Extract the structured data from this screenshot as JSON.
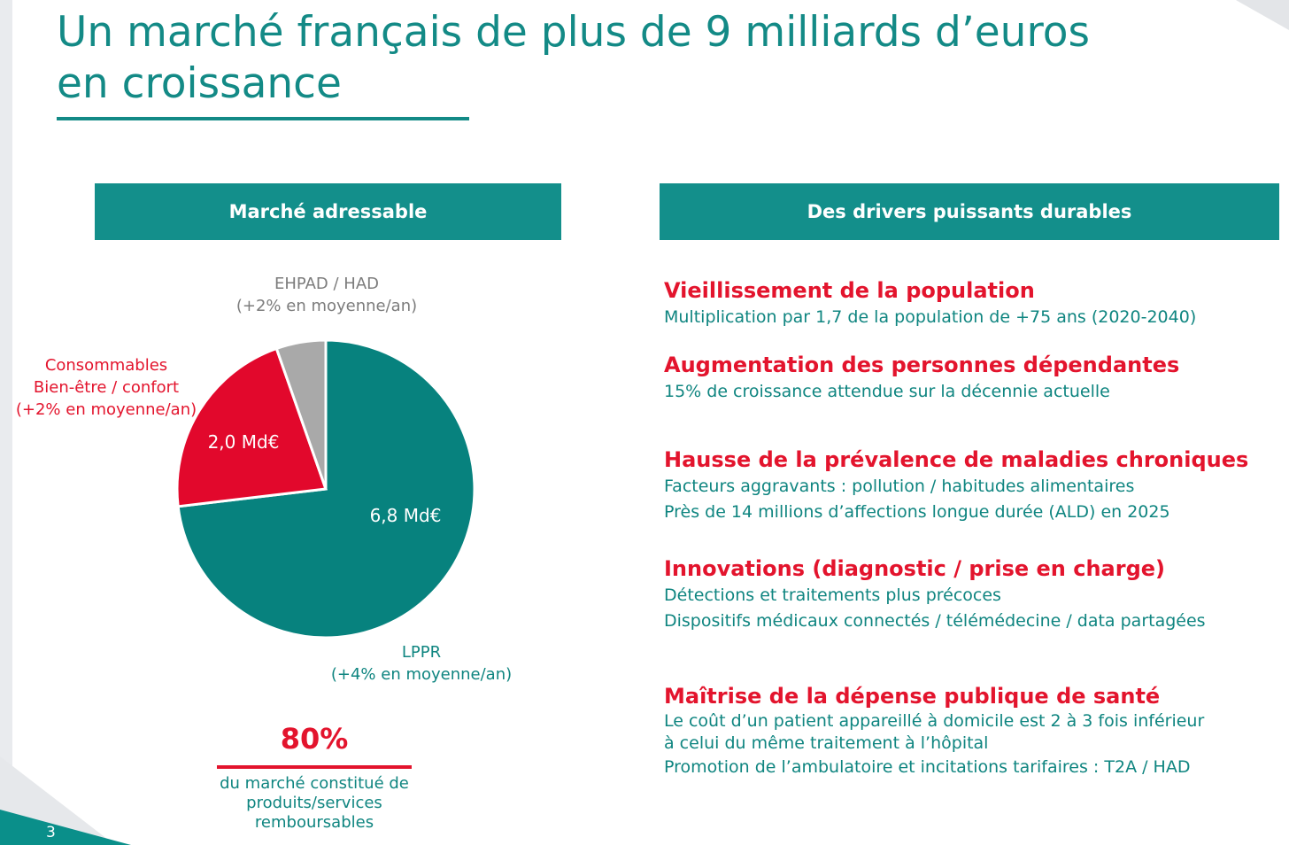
{
  "slide": {
    "title_line1": "Un marché français de plus de 9 milliards d’euros",
    "title_line2": "en croissance",
    "page_number": "3"
  },
  "left_panel": {
    "header": "Marché adressable",
    "labels": {
      "ehpad": [
        "EHPAD / HAD",
        "(+2% en moyenne/an)"
      ],
      "consommables": [
        "Consommables",
        "Bien-être / confort",
        "(+2% en moyenne/an)"
      ],
      "lppr": [
        "LPPR",
        "(+4% en moyenne/an)"
      ]
    },
    "stat": {
      "value": "80%",
      "caption": [
        "du marché constitué de",
        "produits/services",
        "remboursables"
      ]
    }
  },
  "chart_data": {
    "type": "pie",
    "slices": [
      {
        "name": "LPPR",
        "value": 6.8,
        "value_label": "6,8 Md€",
        "color": "#07827e"
      },
      {
        "name": "Consommables Bien-être / confort",
        "value": 2.0,
        "value_label": "2,0 Md€",
        "color": "#e2082c"
      },
      {
        "name": "EHPAD / HAD",
        "value": 0.5,
        "value_label": "",
        "color": "#a9a9a9"
      }
    ]
  },
  "right_panel": {
    "header": "Des drivers puissants durables",
    "drivers": [
      {
        "title": "Vieillissement de la population",
        "lines": [
          "Multiplication par 1,7 de la population de +75 ans (2020-2040)"
        ]
      },
      {
        "title": "Augmentation des personnes dépendantes",
        "lines": [
          "15% de croissance attendue sur la décennie actuelle"
        ]
      },
      {
        "title": "Hausse de la prévalence de maladies chroniques",
        "lines": [
          "Facteurs aggravants : pollution / habitudes alimentaires",
          "Près de 14 millions d’affections longue durée (ALD) en 2025"
        ]
      },
      {
        "title": "Innovations (diagnostic / prise en charge)",
        "lines": [
          "Détections et traitements plus précoces",
          "Dispositifs médicaux connectés / télémédecine / data partagées"
        ]
      },
      {
        "title": "Maîtrise de la dépense publique de santé",
        "lines": [
          "Le coût d’un patient appareillé à domicile est 2 à 3 fois inférieur",
          "à celui du même traitement à l’hôpital",
          "Promotion de l’ambulatoire et incitations tarifaires : T2A / HAD"
        ]
      }
    ]
  }
}
